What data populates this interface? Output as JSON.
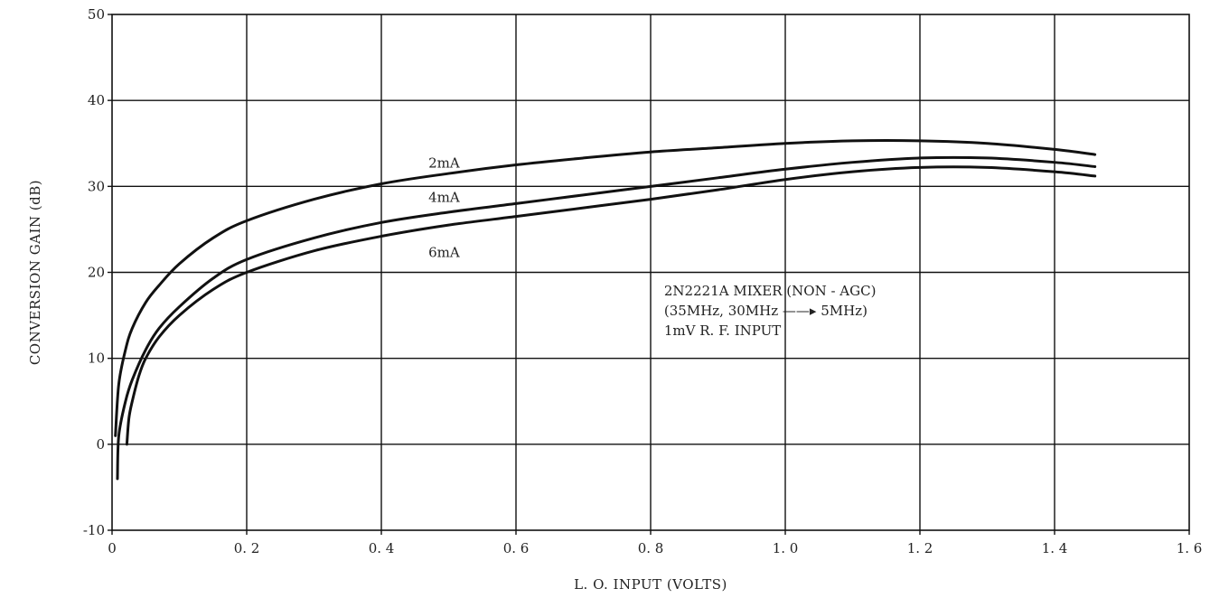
{
  "chart_data": {
    "type": "line",
    "title": "",
    "xlabel": "L. O. INPUT (VOLTS)",
    "ylabel": "CONVERSION GAIN (dB)",
    "xlim": [
      0,
      1.6
    ],
    "ylim": [
      -10,
      50
    ],
    "x_ticks": [
      0,
      0.2,
      0.4,
      0.6,
      0.8,
      1.0,
      1.2,
      1.4,
      1.6
    ],
    "x_tick_labels": [
      "0",
      "0. 2",
      "0. 4",
      "0. 6",
      "0. 8",
      "1. 0",
      "1. 2",
      "1. 4",
      "1. 6"
    ],
    "y_ticks": [
      -10,
      0,
      10,
      20,
      30,
      40,
      50
    ],
    "y_tick_labels": [
      "-10",
      "0",
      "10",
      "20",
      "30",
      "40",
      "50"
    ],
    "grid": true,
    "series": [
      {
        "name": "2mA",
        "x": [
          0.005,
          0.01,
          0.02,
          0.03,
          0.05,
          0.07,
          0.1,
          0.15,
          0.2,
          0.3,
          0.4,
          0.5,
          0.6,
          0.7,
          0.8,
          0.9,
          1.0,
          1.1,
          1.2,
          1.3,
          1.4,
          1.46
        ],
        "y": [
          1,
          7,
          11,
          13.5,
          16.5,
          18.5,
          21,
          24,
          26,
          28.5,
          30.3,
          31.5,
          32.5,
          33.3,
          34,
          34.5,
          35,
          35.3,
          35.3,
          35,
          34.3,
          33.7
        ]
      },
      {
        "name": "4mA",
        "x": [
          0.008,
          0.01,
          0.02,
          0.03,
          0.05,
          0.07,
          0.1,
          0.15,
          0.2,
          0.3,
          0.4,
          0.5,
          0.6,
          0.7,
          0.8,
          0.9,
          1.0,
          1.1,
          1.2,
          1.3,
          1.4,
          1.46
        ],
        "y": [
          -4,
          1,
          5,
          7.5,
          11,
          13.5,
          16,
          19.3,
          21.5,
          24,
          25.8,
          27,
          28,
          29,
          30,
          31,
          32,
          32.8,
          33.3,
          33.3,
          32.8,
          32.3
        ]
      },
      {
        "name": "6mA",
        "x": [
          0.022,
          0.025,
          0.03,
          0.04,
          0.05,
          0.07,
          0.1,
          0.15,
          0.2,
          0.3,
          0.4,
          0.5,
          0.6,
          0.7,
          0.8,
          0.9,
          1.0,
          1.1,
          1.2,
          1.3,
          1.4,
          1.46
        ],
        "y": [
          0,
          3,
          5,
          8,
          10,
          12.5,
          15,
          18,
          20,
          22.5,
          24.2,
          25.5,
          26.5,
          27.5,
          28.5,
          29.6,
          30.8,
          31.7,
          32.2,
          32.2,
          31.7,
          31.2
        ]
      }
    ],
    "series_labels": [
      {
        "text": "2mA",
        "x": 0.47,
        "y": 32.2
      },
      {
        "text": "4mA",
        "x": 0.47,
        "y": 28.2
      },
      {
        "text": "6mA",
        "x": 0.47,
        "y": 21.8
      }
    ],
    "annotation": {
      "lines": [
        "2N2221A MIXER (NON - AGC)",
        "(35MHz, 30MHz ——▸ 5MHz)",
        "1mV R. F. INPUT"
      ],
      "x": 0.82,
      "y": 17.3
    }
  }
}
